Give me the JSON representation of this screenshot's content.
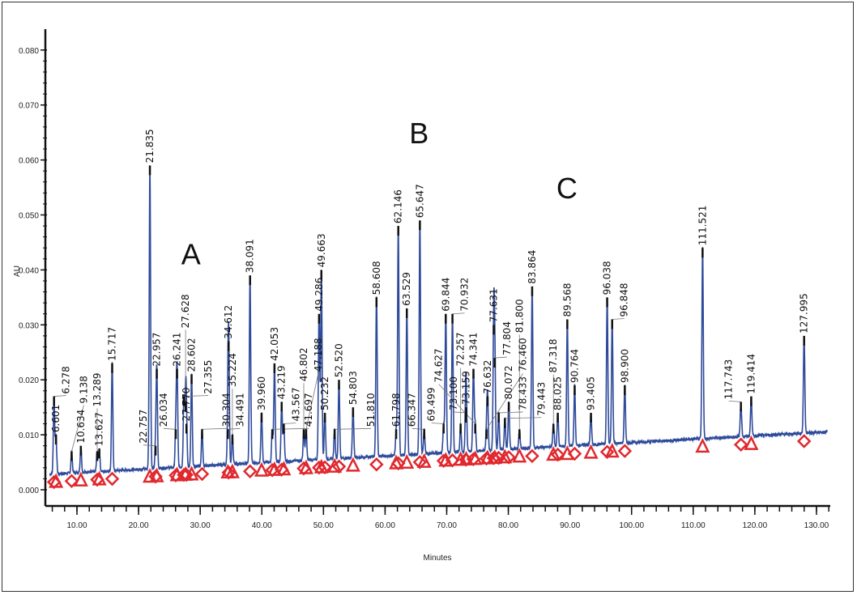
{
  "chart_data": {
    "type": "line",
    "xlabel": "Minutes",
    "ylabel": "AU",
    "xlim": [
      5,
      132
    ],
    "ylim": [
      0,
      0.082
    ],
    "x_ticks": [
      "10.00",
      "20.00",
      "30.00",
      "40.00",
      "50.00",
      "60.00",
      "70.00",
      "80.00",
      "90.00",
      "100.00",
      "110.00",
      "120.00",
      "130.00"
    ],
    "y_ticks": [
      "0.000",
      "0.010",
      "0.020",
      "0.030",
      "0.040",
      "0.050",
      "0.060",
      "0.070",
      "0.080"
    ],
    "grid": false,
    "line_color": "#2e4a9a",
    "marker_color": "#e0282e",
    "label_color": "#111111",
    "annotations": [
      {
        "text": "A",
        "x": 28.5,
        "y": 0.041
      },
      {
        "text": "B",
        "x": 65.5,
        "y": 0.063
      },
      {
        "text": "C",
        "x": 89.5,
        "y": 0.053
      }
    ],
    "peaks": [
      {
        "label": "6.278",
        "t": 6.278,
        "h": 0.017
      },
      {
        "label": "6.601",
        "t": 6.601,
        "h": 0.01
      },
      {
        "label": "9.138",
        "t": 9.138,
        "h": 0.007
      },
      {
        "label": "10.634",
        "t": 10.634,
        "h": 0.008
      },
      {
        "label": "13.289",
        "t": 13.289,
        "h": 0.007
      },
      {
        "label": "13.627",
        "t": 13.627,
        "h": 0.0075
      },
      {
        "label": "15.717",
        "t": 15.717,
        "h": 0.023
      },
      {
        "label": "21.835",
        "t": 21.835,
        "h": 0.059
      },
      {
        "label": "22.757",
        "t": 22.757,
        "h": 0.008
      },
      {
        "label": "22.957",
        "t": 22.957,
        "h": 0.022
      },
      {
        "label": "26.034",
        "t": 26.034,
        "h": 0.011
      },
      {
        "label": "26.241",
        "t": 26.241,
        "h": 0.022
      },
      {
        "label": "27.355",
        "t": 27.355,
        "h": 0.017
      },
      {
        "label": "27.628",
        "t": 27.628,
        "h": 0.016
      },
      {
        "label": "27.770",
        "t": 27.77,
        "h": 0.012
      },
      {
        "label": "28.602",
        "t": 28.602,
        "h": 0.021
      },
      {
        "label": "30.304",
        "t": 30.304,
        "h": 0.011
      },
      {
        "label": "34.491",
        "t": 34.491,
        "h": 0.011
      },
      {
        "label": "34.612",
        "t": 34.612,
        "h": 0.027
      },
      {
        "label": "35.224",
        "t": 35.224,
        "h": 0.01
      },
      {
        "label": "38.091",
        "t": 38.091,
        "h": 0.039
      },
      {
        "label": "39.960",
        "t": 39.96,
        "h": 0.014
      },
      {
        "label": "41.697",
        "t": 41.697,
        "h": 0.011
      },
      {
        "label": "42.053",
        "t": 42.053,
        "h": 0.023
      },
      {
        "label": "43.219",
        "t": 43.219,
        "h": 0.016
      },
      {
        "label": "43.567",
        "t": 43.567,
        "h": 0.012
      },
      {
        "label": "46.802",
        "t": 46.802,
        "h": 0.011
      },
      {
        "label": "47.188",
        "t": 47.188,
        "h": 0.011
      },
      {
        "label": "49.286",
        "t": 49.286,
        "h": 0.032
      },
      {
        "label": "49.663",
        "t": 49.663,
        "h": 0.04
      },
      {
        "label": "50.232",
        "t": 50.232,
        "h": 0.014
      },
      {
        "label": "51.810",
        "t": 51.81,
        "h": 0.011
      },
      {
        "label": "52.520",
        "t": 52.52,
        "h": 0.02
      },
      {
        "label": "54.803",
        "t": 54.803,
        "h": 0.015
      },
      {
        "label": "58.608",
        "t": 58.608,
        "h": 0.035
      },
      {
        "label": "61.798",
        "t": 61.798,
        "h": 0.011
      },
      {
        "label": "62.146",
        "t": 62.146,
        "h": 0.048
      },
      {
        "label": "63.529",
        "t": 63.529,
        "h": 0.033
      },
      {
        "label": "65.647",
        "t": 65.647,
        "h": 0.049
      },
      {
        "label": "66.347",
        "t": 66.347,
        "h": 0.011
      },
      {
        "label": "69.499",
        "t": 69.499,
        "h": 0.012
      },
      {
        "label": "69.844",
        "t": 69.844,
        "h": 0.032
      },
      {
        "label": "70.932",
        "t": 70.932,
        "h": 0.032
      },
      {
        "label": "72.257",
        "t": 72.257,
        "h": 0.012
      },
      {
        "label": "73.100",
        "t": 73.1,
        "h": 0.014
      },
      {
        "label": "73.159",
        "t": 73.159,
        "h": 0.015
      },
      {
        "label": "74.341",
        "t": 74.341,
        "h": 0.022
      },
      {
        "label": "74.627",
        "t": 74.627,
        "h": 0.012
      },
      {
        "label": "76.460",
        "t": 76.46,
        "h": 0.011
      },
      {
        "label": "76.632",
        "t": 76.632,
        "h": 0.017
      },
      {
        "label": "77.631",
        "t": 77.631,
        "h": 0.03
      },
      {
        "label": "77.804",
        "t": 77.804,
        "h": 0.024
      },
      {
        "label": "78.433",
        "t": 78.433,
        "h": 0.014
      },
      {
        "label": "79.443",
        "t": 79.443,
        "h": 0.013
      },
      {
        "label": "80.072",
        "t": 80.072,
        "h": 0.016
      },
      {
        "label": "81.800",
        "t": 81.8,
        "h": 0.011
      },
      {
        "label": "83.864",
        "t": 83.864,
        "h": 0.037
      },
      {
        "label": "87.318",
        "t": 87.318,
        "h": 0.012
      },
      {
        "label": "88.025",
        "t": 88.025,
        "h": 0.014
      },
      {
        "label": "89.568",
        "t": 89.568,
        "h": 0.031
      },
      {
        "label": "90.764",
        "t": 90.764,
        "h": 0.019
      },
      {
        "label": "93.405",
        "t": 93.405,
        "h": 0.014
      },
      {
        "label": "96.038",
        "t": 96.038,
        "h": 0.035
      },
      {
        "label": "96.848",
        "t": 96.848,
        "h": 0.031
      },
      {
        "label": "98.900",
        "t": 98.9,
        "h": 0.019
      },
      {
        "label": "111.521",
        "t": 111.521,
        "h": 0.044
      },
      {
        "label": "117.743",
        "t": 117.743,
        "h": 0.016
      },
      {
        "label": "119.414",
        "t": 119.414,
        "h": 0.017
      },
      {
        "label": "127.995",
        "t": 127.995,
        "h": 0.028
      }
    ]
  }
}
